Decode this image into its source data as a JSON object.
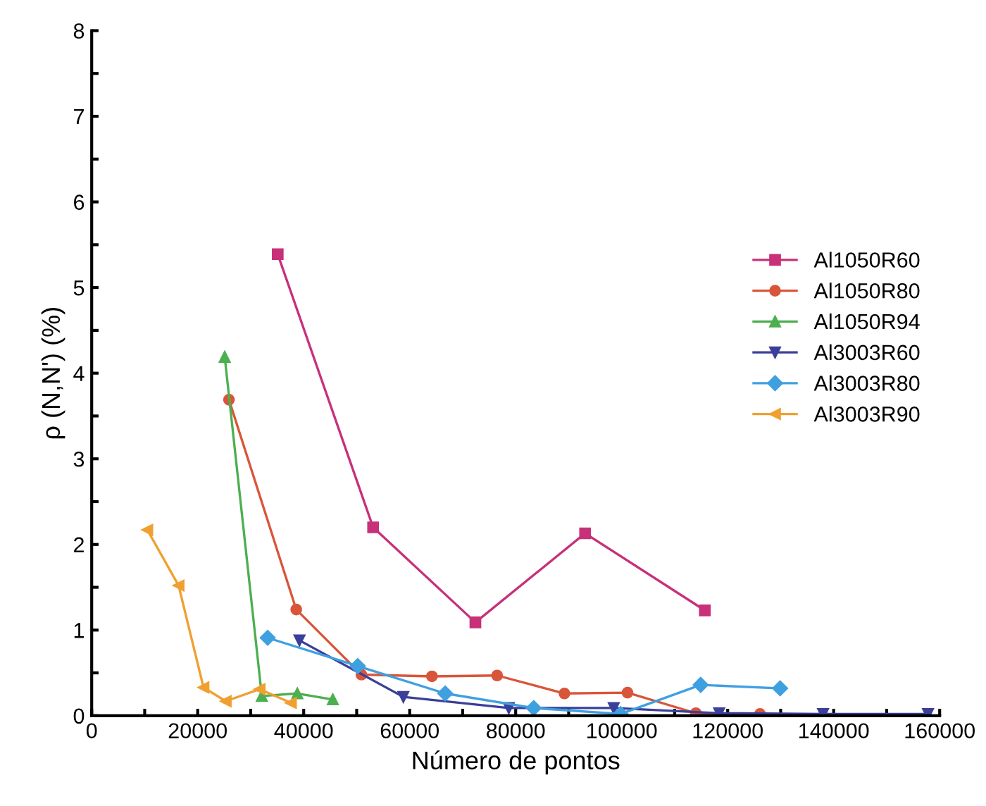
{
  "chart_data": {
    "type": "line",
    "xlabel": "Número de pontos",
    "ylabel": "ρ (N,N') (%)",
    "xlim": [
      0,
      160000
    ],
    "ylim": [
      0,
      8
    ],
    "xticks": [
      0,
      {
        "value": 10000,
        "label": null
      },
      20000,
      {
        "value": 30000,
        "label": null
      },
      40000,
      {
        "value": 50000,
        "label": null
      },
      60000,
      {
        "value": 70000,
        "label": null
      },
      80000,
      {
        "value": 90000,
        "label": null
      },
      100000,
      {
        "value": 110000,
        "label": null
      },
      120000,
      {
        "value": 130000,
        "label": null
      },
      140000,
      {
        "value": 150000,
        "label": null
      },
      160000
    ],
    "yticks": [
      0,
      {
        "value": 0.5,
        "label": null
      },
      1,
      {
        "value": 1.5,
        "label": null
      },
      2,
      {
        "value": 2.5,
        "label": null
      },
      3,
      {
        "value": 3.5,
        "label": null
      },
      4,
      {
        "value": 4.5,
        "label": null
      },
      5,
      {
        "value": 5.5,
        "label": null
      },
      6,
      {
        "value": 6.5,
        "label": null
      },
      7,
      {
        "value": 7.5,
        "label": null
      },
      8
    ],
    "grid": false,
    "legend": "right",
    "line_style": "solid",
    "series": [
      {
        "name": "Al1050R60",
        "color": "#c8307a",
        "marker": "square",
        "x": [
          35100,
          53100,
          72400,
          93100,
          115700
        ],
        "values": [
          5.39,
          2.2,
          1.09,
          2.13,
          1.23
        ]
      },
      {
        "name": "Al1050R80",
        "color": "#d9553a",
        "marker": "circle",
        "x": [
          25900,
          38600,
          50900,
          64200,
          76500,
          89200,
          101100,
          114000,
          126100
        ],
        "values": [
          3.69,
          1.24,
          0.48,
          0.46,
          0.47,
          0.26,
          0.27,
          0.03,
          0.02
        ]
      },
      {
        "name": "Al1050R94",
        "color": "#4caf50",
        "marker": "triangle",
        "x": [
          25100,
          32100,
          38800,
          45500
        ],
        "values": [
          4.19,
          0.23,
          0.26,
          0.19
        ]
      },
      {
        "name": "Al3003R60",
        "color": "#3a3f9a",
        "marker": "triangle_down",
        "x": [
          39200,
          58800,
          78700,
          98500,
          118400,
          138000,
          157800
        ],
        "values": [
          0.88,
          0.22,
          0.09,
          0.09,
          0.03,
          0.02,
          0.02
        ]
      },
      {
        "name": "Al3003R80",
        "color": "#3fa0e0",
        "marker": "diamond",
        "x": [
          33200,
          50200,
          66700,
          83400,
          99800,
          114900,
          129900
        ],
        "values": [
          0.91,
          0.58,
          0.26,
          0.09,
          0.02,
          0.36,
          0.32
        ]
      },
      {
        "name": "Al3003R90",
        "color": "#f0a030",
        "marker": "triangle_left",
        "x": [
          10500,
          16400,
          21100,
          25300,
          31700,
          37600
        ],
        "values": [
          2.17,
          1.52,
          0.33,
          0.17,
          0.31,
          0.15
        ]
      }
    ]
  }
}
